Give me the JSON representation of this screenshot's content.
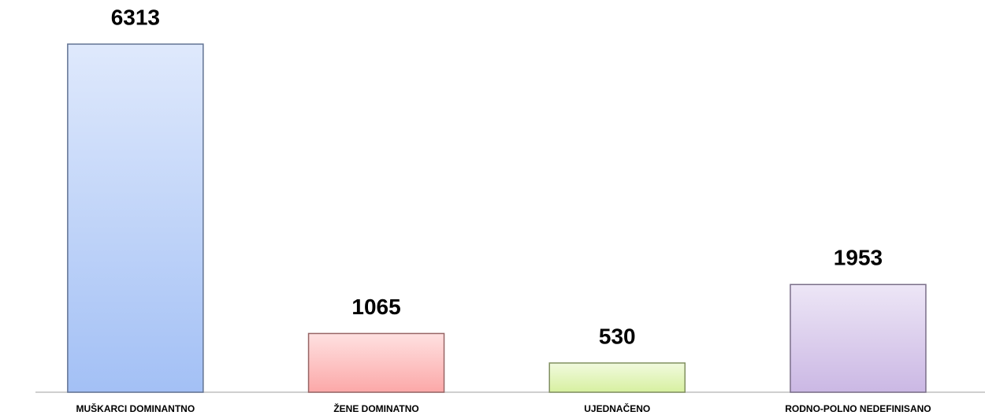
{
  "chart_data": {
    "type": "bar",
    "categories": [
      "MUŠKARCI DOMINANTNO",
      "ŽENE DOMINATNO",
      "UJEDNAČENO",
      "RODNO-POLNO NEDEFINISANO"
    ],
    "values": [
      6313,
      1065,
      530,
      1953
    ],
    "colors": [
      "#a3c0f5",
      "#fca8a8",
      "#d7f0a0",
      "#cbb8e4"
    ]
  }
}
